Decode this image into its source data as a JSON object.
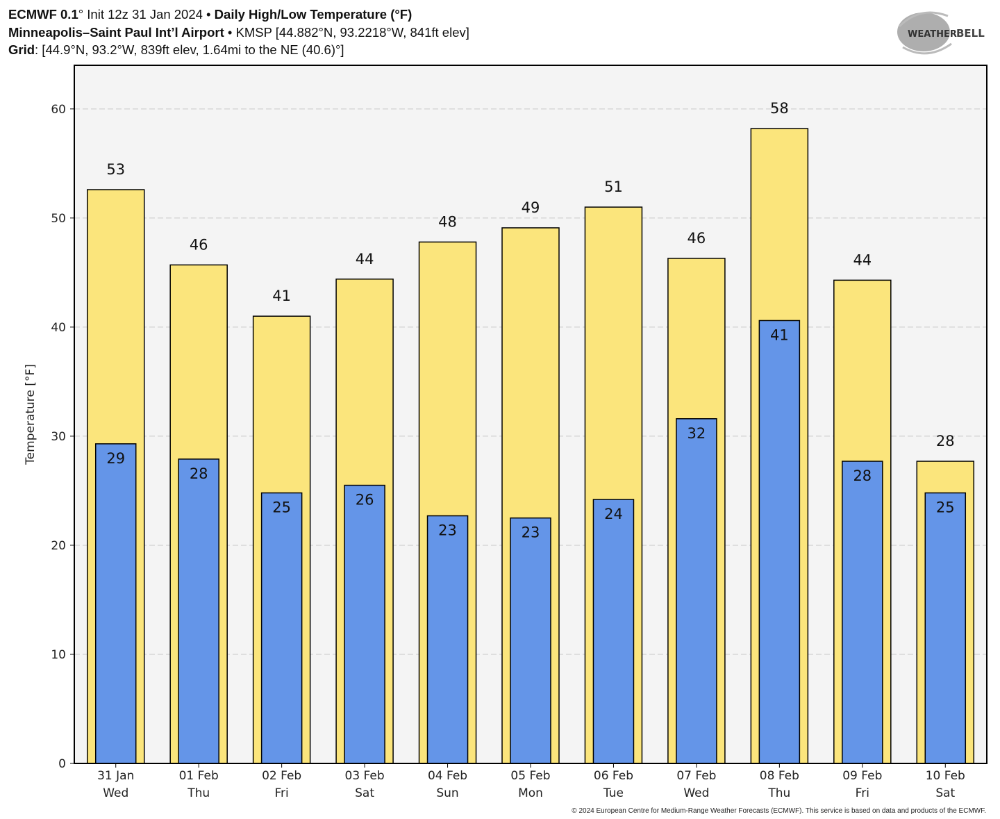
{
  "header": {
    "line1": {
      "model": "ECMWF 0.1",
      "deg": "°",
      "init": " Init 12z 31 Jan 2024 • ",
      "title": "Daily High/Low Temperature (°F)"
    },
    "line2": {
      "station": "Minneapolis–Saint Paul Int’l Airport",
      "rest": " • KMSP [44.882°N, 93.2218°W, 841ft elev]"
    },
    "line3": {
      "label": "Grid",
      "rest": ": [44.9°N, 93.2°W, 839ft elev, 1.64mi to the NE (40.6)°]"
    }
  },
  "logo": "WeatherBELL Analytics LLC",
  "footer": "© 2024 European Centre for Medium-Range Weather Forecasts (ECMWF). This service is based on data and products of the ECMWF.",
  "colors": {
    "high": "#fbe57c",
    "low": "#6495e8",
    "plot_bg": "#f4f4f4",
    "grid": "#c8c8c8"
  },
  "chart_data": {
    "type": "bar",
    "ylabel": "Temperature [°F]",
    "ylim": [
      0,
      64
    ],
    "yticks": [
      0,
      10,
      20,
      30,
      40,
      50,
      60
    ],
    "grid": true,
    "categories": [
      [
        "31 Jan",
        "Wed"
      ],
      [
        "01 Feb",
        "Thu"
      ],
      [
        "02 Feb",
        "Fri"
      ],
      [
        "03 Feb",
        "Sat"
      ],
      [
        "04 Feb",
        "Sun"
      ],
      [
        "05 Feb",
        "Mon"
      ],
      [
        "06 Feb",
        "Tue"
      ],
      [
        "07 Feb",
        "Wed"
      ],
      [
        "08 Feb",
        "Thu"
      ],
      [
        "09 Feb",
        "Fri"
      ],
      [
        "10 Feb",
        "Sat"
      ]
    ],
    "series": [
      {
        "key": "high",
        "values": [
          52.6,
          45.7,
          41.0,
          44.4,
          47.8,
          49.1,
          51.0,
          46.3,
          58.2,
          44.3,
          27.7
        ],
        "labels": [
          "53",
          "46",
          "41",
          "44",
          "48",
          "49",
          "51",
          "46",
          "58",
          "44",
          "28"
        ]
      },
      {
        "key": "low",
        "values": [
          29.3,
          27.9,
          24.8,
          25.5,
          22.7,
          22.5,
          24.2,
          31.6,
          40.6,
          27.7,
          24.8
        ],
        "labels": [
          "29",
          "28",
          "25",
          "26",
          "23",
          "23",
          "24",
          "32",
          "41",
          "28",
          "25"
        ]
      }
    ]
  }
}
